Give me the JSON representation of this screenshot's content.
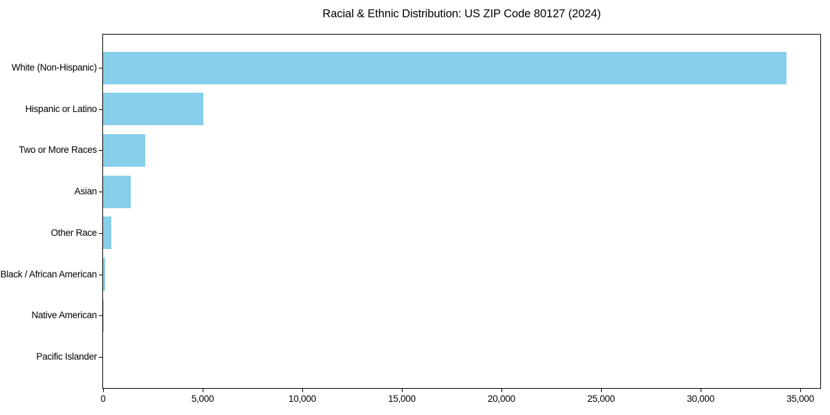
{
  "chart_data": {
    "type": "bar",
    "orientation": "horizontal",
    "title": "Racial & Ethnic Distribution: US ZIP Code 80127 (2024)",
    "categories": [
      "White (Non-Hispanic)",
      "Hispanic or Latino",
      "Two or More Races",
      "Asian",
      "Other Race",
      "Black / African American",
      "Native American",
      "Pacific Islander"
    ],
    "values": [
      34300,
      5050,
      2130,
      1380,
      420,
      120,
      45,
      10
    ],
    "xlabel": "",
    "ylabel": "",
    "xlim": [
      0,
      36000
    ],
    "xticks": [
      0,
      5000,
      10000,
      15000,
      20000,
      25000,
      30000,
      35000
    ],
    "xtick_labels": [
      "0",
      "5,000",
      "10,000",
      "15,000",
      "20,000",
      "25,000",
      "30,000",
      "35,000"
    ],
    "bar_color": "#87CEEB",
    "axis_color": "#000000",
    "background_color": "#FFFFFF",
    "grid": false,
    "legend": "none"
  }
}
